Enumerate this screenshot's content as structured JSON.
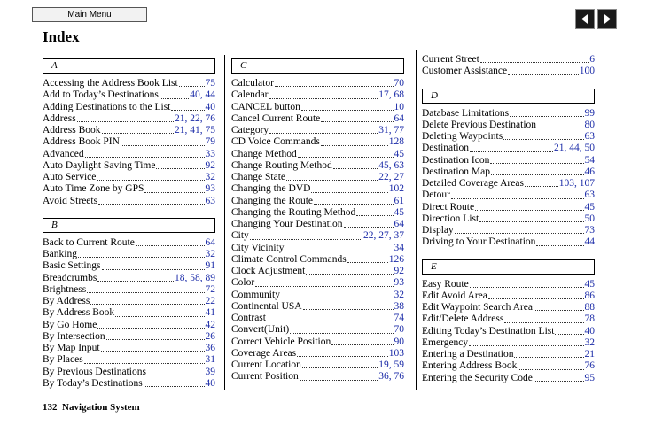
{
  "header": {
    "menu_button": "Main Menu",
    "title": "Index"
  },
  "columns": [
    {
      "sections": [
        {
          "letter": "A",
          "entries": [
            {
              "name": "Accessing the Address Book List",
              "pages": "75"
            },
            {
              "name": "Add to Today’s Destinations",
              "pages": "40, 44"
            },
            {
              "name": "Adding Destinations to the List",
              "pages": "40"
            },
            {
              "name": "Address",
              "pages": "21, 22, 76"
            },
            {
              "name": "Address Book",
              "pages": "21, 41, 75"
            },
            {
              "name": "Address Book PIN",
              "pages": "79"
            },
            {
              "name": "Advanced",
              "pages": "33"
            },
            {
              "name": "Auto Daylight Saving Time",
              "pages": "92"
            },
            {
              "name": "Auto Service",
              "pages": "32"
            },
            {
              "name": "Auto Time Zone by GPS",
              "pages": "93"
            },
            {
              "name": "Avoid Streets",
              "pages": "63"
            }
          ]
        },
        {
          "letter": "B",
          "entries": [
            {
              "name": "Back to Current Route",
              "pages": "64"
            },
            {
              "name": "Banking",
              "pages": "32"
            },
            {
              "name": "Basic Settings",
              "pages": "91"
            },
            {
              "name": "Breadcrumbs",
              "pages": "18, 58, 89"
            },
            {
              "name": "Brightness",
              "pages": "72"
            },
            {
              "name": "By Address",
              "pages": "22"
            },
            {
              "name": "By Address Book",
              "pages": "41"
            },
            {
              "name": "By Go Home",
              "pages": "42"
            },
            {
              "name": "By Intersection",
              "pages": "26"
            },
            {
              "name": "By Map Input",
              "pages": "36"
            },
            {
              "name": "By Places",
              "pages": "31"
            },
            {
              "name": "By Previous Destinations",
              "pages": "39"
            },
            {
              "name": "By Today’s Destinations",
              "pages": "40"
            }
          ]
        }
      ]
    },
    {
      "sections": [
        {
          "letter": "C",
          "entries": [
            {
              "name": "Calculator",
              "pages": "70"
            },
            {
              "name": "Calendar",
              "pages": "17, 68"
            },
            {
              "name": "CANCEL button",
              "pages": "10"
            },
            {
              "name": "Cancel Current Route",
              "pages": "64"
            },
            {
              "name": "Category",
              "pages": "31, 77"
            },
            {
              "name": "CD Voice Commands",
              "pages": "128"
            },
            {
              "name": "Change Method",
              "pages": "45"
            },
            {
              "name": "Change Routing Method",
              "pages": "45, 63"
            },
            {
              "name": "Change State",
              "pages": "22, 27"
            },
            {
              "name": "Changing the DVD",
              "pages": "102"
            },
            {
              "name": "Changing the Route",
              "pages": "61"
            },
            {
              "name": "Changing the Routing Method",
              "pages": "45"
            },
            {
              "name": "Changing Your Destination",
              "pages": "64"
            },
            {
              "name": "City",
              "pages": "22, 27, 37"
            },
            {
              "name": "City Vicinity",
              "pages": "34"
            },
            {
              "name": "Climate Control Commands",
              "pages": "126"
            },
            {
              "name": "Clock Adjustment",
              "pages": "92"
            },
            {
              "name": "Color",
              "pages": "93"
            },
            {
              "name": "Community",
              "pages": "32"
            },
            {
              "name": "Continental USA",
              "pages": "38"
            },
            {
              "name": "Contrast",
              "pages": "74"
            },
            {
              "name": "Convert(Unit)",
              "pages": "70"
            },
            {
              "name": "Correct Vehicle Position",
              "pages": "90"
            },
            {
              "name": "Coverage Areas",
              "pages": "103"
            },
            {
              "name": "Current Location",
              "pages": "19, 59"
            },
            {
              "name": "Current Position",
              "pages": "36, 76"
            }
          ]
        }
      ]
    },
    {
      "sections": [
        {
          "entries": [
            {
              "name": "Current Street",
              "pages": "6"
            },
            {
              "name": "Customer Assistance",
              "pages": "100"
            }
          ]
        },
        {
          "letter": "D",
          "entries": [
            {
              "name": "Database Limitations",
              "pages": "99"
            },
            {
              "name": "Delete Previous Destination",
              "pages": "80"
            },
            {
              "name": "Deleting Waypoints",
              "pages": "63"
            },
            {
              "name": "Destination",
              "pages": "21, 44, 50"
            },
            {
              "name": "Destination Icon",
              "pages": "54"
            },
            {
              "name": "Destination Map",
              "pages": "46"
            },
            {
              "name": "Detailed Coverage Areas",
              "pages": "103, 107"
            },
            {
              "name": "Detour",
              "pages": "63"
            },
            {
              "name": "Direct Route",
              "pages": "45"
            },
            {
              "name": "Direction List",
              "pages": "50"
            },
            {
              "name": "Display",
              "pages": "73"
            },
            {
              "name": "Driving to Your Destination",
              "pages": "44"
            }
          ]
        },
        {
          "letter": "E",
          "entries": [
            {
              "name": "Easy Route",
              "pages": "45"
            },
            {
              "name": "Edit Avoid Area",
              "pages": "86"
            },
            {
              "name": "Edit Waypoint Search Area",
              "pages": "88"
            },
            {
              "name": "Edit/Delete Address",
              "pages": "78"
            },
            {
              "name": "Editing Today’s Destination List",
              "pages": "40"
            },
            {
              "name": "Emergency",
              "pages": "32"
            },
            {
              "name": "Entering a Destination",
              "pages": "21"
            },
            {
              "name": "Entering Address Book",
              "pages": "76"
            },
            {
              "name": "Entering the Security Code",
              "pages": "95"
            }
          ]
        }
      ]
    }
  ],
  "footer": {
    "page_number": "132",
    "text": "Navigation System"
  }
}
